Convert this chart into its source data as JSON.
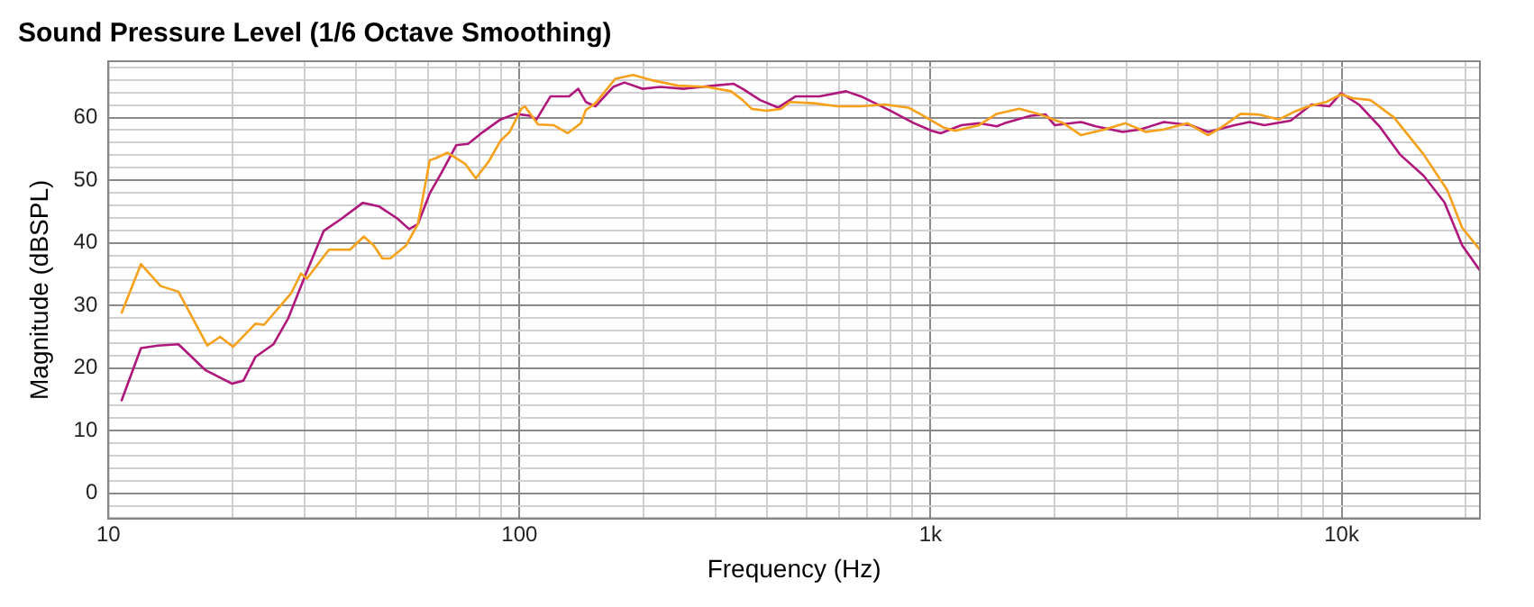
{
  "chart_data": {
    "type": "line",
    "title": "Sound Pressure Level (1/6 Octave Smoothing)",
    "xlabel": "Frequency (Hz)",
    "ylabel": "Magnitude (dBSPL)",
    "log": "x",
    "grid": true,
    "legend": false,
    "marker": "none",
    "line_style": "solid",
    "xlim": [
      10,
      21700
    ],
    "ylim": [
      -4,
      69
    ],
    "xticks": [
      10,
      {
        "value": 20,
        "label": null
      },
      {
        "value": 30,
        "label": null
      },
      {
        "value": 40,
        "label": null
      },
      {
        "value": 50,
        "label": null
      },
      {
        "value": 60,
        "label": null
      },
      {
        "value": 70,
        "label": null
      },
      {
        "value": 80,
        "label": null
      },
      {
        "value": 90,
        "label": null
      },
      100,
      {
        "value": 200,
        "label": null
      },
      {
        "value": 300,
        "label": null
      },
      {
        "value": 400,
        "label": null
      },
      {
        "value": 500,
        "label": null
      },
      {
        "value": 600,
        "label": null
      },
      {
        "value": 700,
        "label": null
      },
      {
        "value": 800,
        "label": null
      },
      {
        "value": 900,
        "label": null
      },
      {
        "value": 1000,
        "label": "1k"
      },
      {
        "value": 2000,
        "label": null
      },
      {
        "value": 3000,
        "label": null
      },
      {
        "value": 4000,
        "label": null
      },
      {
        "value": 5000,
        "label": null
      },
      {
        "value": 6000,
        "label": null
      },
      {
        "value": 7000,
        "label": null
      },
      {
        "value": 8000,
        "label": null
      },
      {
        "value": 9000,
        "label": null
      },
      {
        "value": 10000,
        "label": "10k"
      },
      {
        "value": 20000,
        "label": null
      }
    ],
    "yticks": [
      {
        "value": -2,
        "label": null
      },
      0,
      {
        "value": 2,
        "label": null
      },
      {
        "value": 4,
        "label": null
      },
      {
        "value": 6,
        "label": null
      },
      {
        "value": 8,
        "label": null
      },
      10,
      {
        "value": 12,
        "label": null
      },
      {
        "value": 14,
        "label": null
      },
      {
        "value": 16,
        "label": null
      },
      {
        "value": 18,
        "label": null
      },
      20,
      {
        "value": 22,
        "label": null
      },
      {
        "value": 24,
        "label": null
      },
      {
        "value": 26,
        "label": null
      },
      {
        "value": 28,
        "label": null
      },
      30,
      {
        "value": 32,
        "label": null
      },
      {
        "value": 34,
        "label": null
      },
      {
        "value": 36,
        "label": null
      },
      {
        "value": 38,
        "label": null
      },
      40,
      {
        "value": 42,
        "label": null
      },
      {
        "value": 44,
        "label": null
      },
      {
        "value": 46,
        "label": null
      },
      {
        "value": 48,
        "label": null
      },
      50,
      {
        "value": 52,
        "label": null
      },
      {
        "value": 54,
        "label": null
      },
      {
        "value": 56,
        "label": null
      },
      {
        "value": 58,
        "label": null
      },
      60,
      {
        "value": 62,
        "label": null
      },
      {
        "value": 64,
        "label": null
      },
      {
        "value": 66,
        "label": null
      },
      {
        "value": 68,
        "label": null
      }
    ],
    "series": [
      {
        "color": "#f7a11a",
        "x": [
          10.75,
          12,
          13.4,
          14.8,
          17.4,
          18.7,
          20.1,
          22.8,
          23.9,
          27.8,
          29.4,
          30.4,
          34.4,
          38.7,
          41.8,
          44.2,
          46.4,
          48.5,
          53,
          56.6,
          60.5,
          62.5,
          66.8,
          73.8,
          78.3,
          84.2,
          89.9,
          94.6,
          101,
          103,
          111,
          121,
          131,
          141,
          145,
          153,
          171,
          189,
          209,
          243,
          286,
          327,
          349,
          367,
          399,
          433,
          455,
          520,
          593,
          677,
          772,
          882,
          942,
          1076,
          1148,
          1312,
          1449,
          1644,
          1846,
          2106,
          2324,
          2653,
          2979,
          3343,
          3695,
          4221,
          4735,
          5142,
          5678,
          6270,
          7040,
          7651,
          8312,
          9178,
          9967,
          10640,
          11750,
          13420,
          15840,
          18080,
          19650,
          21690
        ],
        "values": [
          28.7,
          36.6,
          33.1,
          32.2,
          23.6,
          25,
          23.4,
          27.1,
          26.9,
          31.9,
          35.1,
          34.3,
          38.9,
          38.9,
          41,
          39.6,
          37.5,
          37.5,
          39.6,
          43,
          53.2,
          53.5,
          54.4,
          52.6,
          50.3,
          53,
          56.3,
          57.7,
          61.4,
          61.8,
          58.9,
          58.8,
          57.5,
          59.1,
          61.2,
          62.3,
          66.2,
          66.8,
          66,
          65.1,
          64.9,
          64.2,
          62.8,
          61.4,
          61.1,
          61.4,
          62.5,
          62.3,
          61.8,
          61.8,
          62.1,
          61.6,
          60.6,
          58.4,
          57.9,
          58.8,
          60.6,
          61.4,
          60.5,
          59.1,
          57.2,
          58.1,
          59.1,
          57.7,
          58.1,
          59.1,
          57.2,
          58.6,
          60.6,
          60.5,
          59.7,
          60.9,
          61.8,
          62.5,
          63.7,
          63.1,
          62.8,
          60,
          54.1,
          48.4,
          42.4,
          38.9
        ]
      },
      {
        "color": "#b0177c",
        "x": [
          10.75,
          12,
          13.2,
          14.8,
          17.2,
          20,
          21.3,
          22.8,
          25.2,
          27.4,
          30.2,
          33.4,
          36.8,
          41.6,
          45.6,
          50.4,
          53.9,
          56.6,
          60.5,
          64.6,
          70.2,
          75,
          81.5,
          89.9,
          97.7,
          106,
          110,
          119,
          132,
          139,
          145,
          153,
          169,
          180,
          199,
          220,
          251,
          296,
          332,
          349,
          385,
          426,
          470,
          537,
          623,
          677,
          798,
          912,
          1007,
          1058,
          1189,
          1312,
          1449,
          1514,
          1754,
          1905,
          2003,
          2324,
          2523,
          2931,
          3238,
          3695,
          4287,
          4735,
          5494,
          5969,
          6488,
          7516,
          8452,
          9332,
          9967,
          11010,
          12360,
          13870,
          15840,
          17780,
          19650,
          21690
        ],
        "values": [
          14.7,
          23.2,
          23.6,
          23.8,
          19.7,
          17.5,
          18,
          21.8,
          23.8,
          28,
          35,
          41.9,
          43.8,
          46.4,
          45.8,
          43.9,
          42.2,
          43,
          47.9,
          51.2,
          55.6,
          55.8,
          57.7,
          59.7,
          60.6,
          60.3,
          59.7,
          63.4,
          63.4,
          64.6,
          62.5,
          61.8,
          64.9,
          65.6,
          64.6,
          64.9,
          64.6,
          65.1,
          65.4,
          64.6,
          62.8,
          61.6,
          63.4,
          63.4,
          64.2,
          63.4,
          61.1,
          59.1,
          57.9,
          57.5,
          58.8,
          59.1,
          58.6,
          59.1,
          60.3,
          60.5,
          58.8,
          59.3,
          58.6,
          57.7,
          58.1,
          59.3,
          58.8,
          57.7,
          58.8,
          59.3,
          58.8,
          59.5,
          62.1,
          61.8,
          63.9,
          62.1,
          58.6,
          54.1,
          50.7,
          46.5,
          39.6,
          35.6
        ]
      }
    ]
  }
}
